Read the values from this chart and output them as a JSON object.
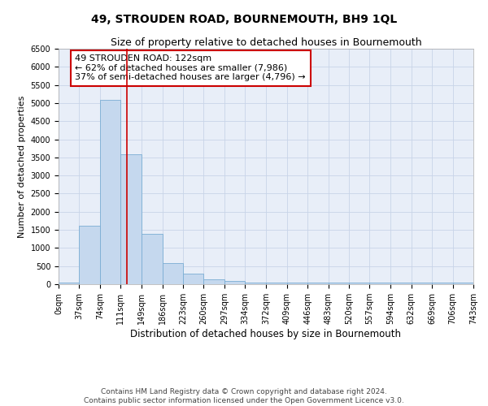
{
  "title": "49, STROUDEN ROAD, BOURNEMOUTH, BH9 1QL",
  "subtitle": "Size of property relative to detached houses in Bournemouth",
  "xlabel": "Distribution of detached houses by size in Bournemouth",
  "ylabel": "Number of detached properties",
  "footer_line1": "Contains HM Land Registry data © Crown copyright and database right 2024.",
  "footer_line2": "Contains public sector information licensed under the Open Government Licence v3.0.",
  "annotation_line1": "49 STROUDEN ROAD: 122sqm",
  "annotation_line2": "← 62% of detached houses are smaller (7,986)",
  "annotation_line3": "37% of semi-detached houses are larger (4,796) →",
  "property_size": 122,
  "bin_edges": [
    0,
    37,
    74,
    111,
    149,
    186,
    223,
    260,
    297,
    334,
    372,
    409,
    446,
    483,
    520,
    557,
    594,
    632,
    669,
    706,
    743
  ],
  "bar_heights": [
    50,
    1620,
    5080,
    3580,
    1400,
    580,
    290,
    130,
    80,
    50,
    50,
    50,
    50,
    50,
    50,
    50,
    50,
    50,
    50,
    50
  ],
  "bar_color": "#c5d8ee",
  "bar_edge_color": "#7aadd4",
  "vline_color": "#cc0000",
  "vline_x": 122,
  "ylim": [
    0,
    6500
  ],
  "yticks": [
    0,
    500,
    1000,
    1500,
    2000,
    2500,
    3000,
    3500,
    4000,
    4500,
    5000,
    5500,
    6000,
    6500
  ],
  "grid_color": "#c8d4e8",
  "bg_color": "#e8eef8",
  "title_fontsize": 10,
  "subtitle_fontsize": 9,
  "xlabel_fontsize": 8.5,
  "ylabel_fontsize": 8,
  "footer_fontsize": 6.5,
  "annotation_fontsize": 8,
  "tick_fontsize": 7
}
